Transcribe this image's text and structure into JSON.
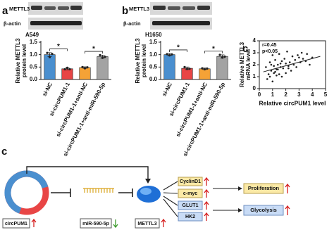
{
  "chart_data": [
    {
      "type": "bar",
      "panel": "a",
      "title": "A549",
      "blot_labels": [
        "METTL3",
        "β-actin"
      ],
      "ylabel": [
        "Relative METTL3",
        "protein level"
      ],
      "categories": [
        "si-NC",
        "si-circPUM1-1",
        "si-circPUM1-1+anti-NC",
        "si-circPUM1-1+anti-miR-590-5p"
      ],
      "values": [
        1.0,
        0.43,
        0.48,
        0.92
      ],
      "errors": [
        0.08,
        0.04,
        0.03,
        0.06
      ],
      "points": [
        [
          1.07,
          0.9,
          1.03
        ],
        [
          0.41,
          0.47,
          0.41
        ],
        [
          0.5,
          0.45,
          0.49
        ],
        [
          0.98,
          0.87,
          0.91
        ]
      ],
      "colors": [
        "#4a8fcf",
        "#e84545",
        "#f5a236",
        "#a3a3a3"
      ],
      "annotations": [
        "*",
        "*"
      ],
      "ylim": [
        0,
        1.5
      ],
      "yticks": [
        {
          "value": 0,
          "label": "0.0"
        },
        0.5,
        {
          "value": 1,
          "label": "1.0"
        },
        1.5
      ]
    },
    {
      "type": "bar",
      "panel": "b",
      "title": "H1650",
      "blot_labels": [
        "METTL3",
        "β-actin"
      ],
      "ylabel": [
        "Relative METTL3",
        "protein level"
      ],
      "categories": [
        "si-NC",
        "si-circPUM1-1",
        "si-circPUM1-1+anti-NC",
        "si-circPUM1-1+anti-miR-590-5p"
      ],
      "values": [
        1.0,
        0.45,
        0.43,
        0.93
      ],
      "errors": [
        0.04,
        0.05,
        0.03,
        0.06
      ],
      "points": [
        [
          1.02,
          0.97,
          1.01
        ],
        [
          0.5,
          0.42,
          0.43
        ],
        [
          0.45,
          0.41,
          0.44
        ],
        [
          0.99,
          0.88,
          0.92
        ]
      ],
      "colors": [
        "#4a8fcf",
        "#e84545",
        "#f5a236",
        "#a3a3a3"
      ],
      "annotations": [
        "*",
        "*"
      ],
      "ylim": [
        0,
        1.5
      ],
      "yticks": [
        {
          "value": 0,
          "label": "0.0"
        },
        0.5,
        {
          "value": 1,
          "label": "1.0"
        },
        1.5
      ]
    },
    {
      "type": "scatter",
      "panel": "c",
      "annotations": [
        "r=0.45",
        "p<0.05"
      ],
      "xlabel": "Relative circPUM1 level",
      "ylabel": [
        "Relative METTL3",
        "mRNA level"
      ],
      "x": [
        0.5,
        0.6,
        0.7,
        0.8,
        0.8,
        0.9,
        1.0,
        1.0,
        1.1,
        1.2,
        1.2,
        1.3,
        1.4,
        1.4,
        1.5,
        1.5,
        1.6,
        1.7,
        1.7,
        1.8,
        1.9,
        2.0,
        2.0,
        2.1,
        2.2,
        2.3,
        2.4,
        2.5,
        2.6,
        2.7,
        2.8,
        3.0,
        3.1,
        3.2,
        3.3,
        3.5,
        3.6,
        3.8,
        4.0,
        1.1,
        1.6,
        2.2,
        0.9,
        2.9,
        1.3
      ],
      "y": [
        1.8,
        0.8,
        1.2,
        2.2,
        1.0,
        1.5,
        2.8,
        0.6,
        1.9,
        1.4,
        2.4,
        1.1,
        2.0,
        1.6,
        2.9,
        1.2,
        1.8,
        2.3,
        1.0,
        1.7,
        2.5,
        1.3,
        2.1,
        3.1,
        1.9,
        2.2,
        1.5,
        2.7,
        2.0,
        2.4,
        1.8,
        2.6,
        2.2,
        3.0,
        2.5,
        2.3,
        2.9,
        2.0,
        2.6,
        1.3,
        2.1,
        1.7,
        2.0,
        2.8,
        1.6
      ],
      "fit": {
        "x": [
          0.3,
          4.6
        ],
        "y": [
          1.4,
          2.7
        ]
      },
      "color": "#222222",
      "xlim": [
        0,
        5
      ],
      "xticks": [
        0,
        1,
        2,
        3,
        4,
        5
      ],
      "ylim": [
        0,
        4
      ],
      "yticks": [
        0,
        1,
        2,
        3,
        4
      ]
    }
  ],
  "diagram": {
    "panel": "c",
    "circ": "circPUM1",
    "mir": "miR-590-5p",
    "target": "METTL3",
    "genes": [
      "CyclinD1",
      "c-myc",
      "GLUT1",
      "HK2"
    ],
    "outcomes": [
      "Proliferation",
      "Glycolysis"
    ]
  }
}
